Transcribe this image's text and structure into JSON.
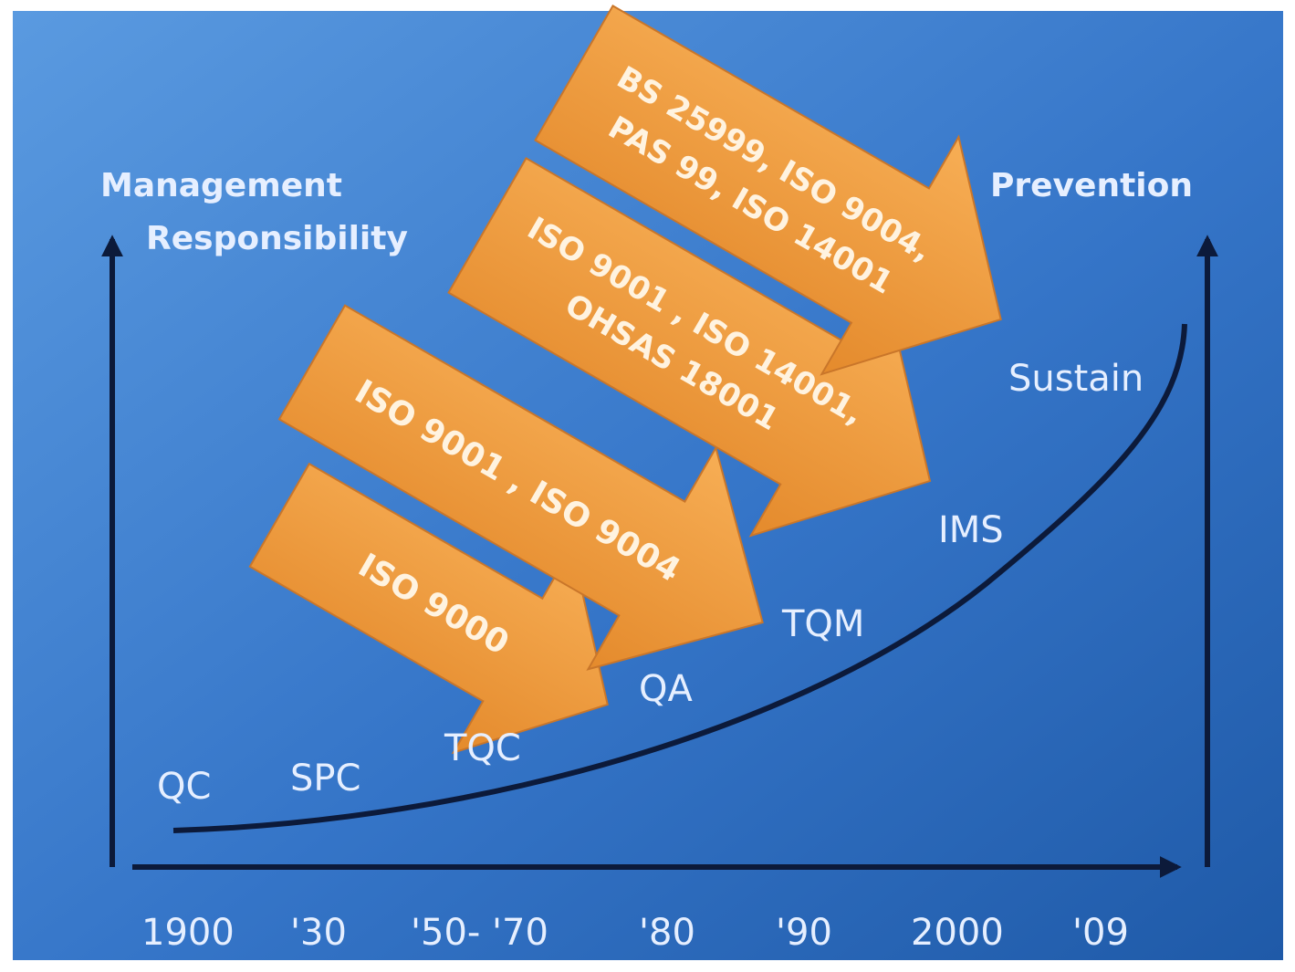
{
  "labels": {
    "left_axis_line1": "Management",
    "left_axis_line2": "Responsibility",
    "right_axis": "Prevention"
  },
  "stages": [
    "QC",
    "SPC",
    "TQC",
    "QA",
    "TQM",
    "IMS",
    "Sustain"
  ],
  "timeline": [
    "1900",
    "'30",
    "'50- '70",
    "'80",
    "'90",
    "2000",
    "'09"
  ],
  "arrows": [
    {
      "lines": [
        "ISO 9000"
      ]
    },
    {
      "lines": [
        "ISO 9001 , ISO 9004"
      ]
    },
    {
      "lines": [
        "ISO 9001 , ISO 14001,",
        "OHSAS 18001"
      ]
    },
    {
      "lines": [
        "BS 25999, ISO 9004,",
        "PAS 99, ISO 14001"
      ]
    }
  ],
  "colors": {
    "background_light": "#4f8fd8",
    "background_dark": "#1f5aa8",
    "arrow_fill": "#f29a3a",
    "axis": "#0c1a3a",
    "text": "#e6efff"
  }
}
